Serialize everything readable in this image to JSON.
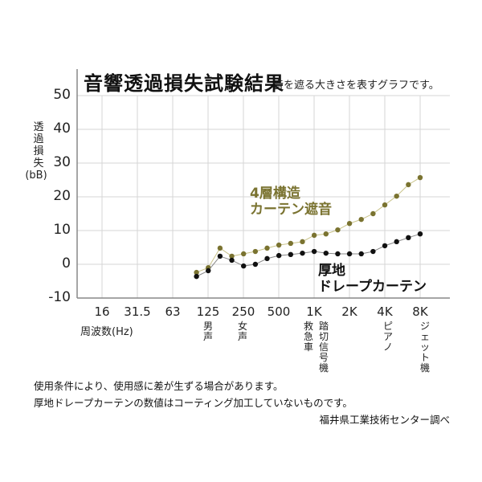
{
  "header": {
    "title": "音響透過損失試験結果",
    "subtitle": "音を遮る大きさを表すグラフです。"
  },
  "axes": {
    "ylabel_lines": [
      "透",
      "過",
      "損",
      "失"
    ],
    "ylabel_unit": "(bB)",
    "yticks": [
      "50",
      "40",
      "30",
      "20",
      "10",
      "0",
      "-10"
    ],
    "xticks": [
      "16",
      "31.5",
      "63",
      "125",
      "250",
      "500",
      "1K",
      "2K",
      "4K",
      "8K"
    ],
    "xlabel": "周波数(Hz)"
  },
  "annotations": {
    "male_voice": "男声",
    "female_voice": "女声",
    "ambulance": "救急車",
    "railroad_crossing": "踏切信号機",
    "piano": "ピアノ",
    "jet": "ジェット機"
  },
  "series_labels": {
    "four_layer_line1": "4層構造",
    "four_layer_line2": "カーテン遮音",
    "drape_line1": "厚地",
    "drape_line2": "ドレープカーテン"
  },
  "notes": {
    "line1": "使用条件により、使用感に差が生ずる場合があります。",
    "line2": "厚地ドレープカーテンの数値はコーティング加工していないものです。",
    "source": "福井県工業技術センター調べ"
  },
  "colors": {
    "four_layer": "#7a7330",
    "drape": "#111111",
    "grid": "#d6d6d6",
    "axis": "#888888"
  },
  "chart_data": {
    "type": "line",
    "title": "音響透過損失試験結果",
    "subtitle": "音を遮る大きさを表すグラフです。",
    "xlabel": "周波数(Hz)",
    "ylabel": "透過損失(bB)",
    "ylim": [
      -10,
      50
    ],
    "yticks": [
      -10,
      0,
      10,
      20,
      30,
      40,
      50
    ],
    "xtick_labels": [
      "16",
      "31.5",
      "63",
      "125",
      "250",
      "500",
      "1K",
      "2K",
      "4K",
      "8K"
    ],
    "grid": true,
    "x": [
      "100",
      "125",
      "160",
      "200",
      "250",
      "315",
      "400",
      "500",
      "630",
      "800",
      "1K",
      "1.25K",
      "1.6K",
      "2K",
      "2.5K",
      "3.15K",
      "4K",
      "5K",
      "6.3K",
      "8K"
    ],
    "series": [
      {
        "name": "4層構造カーテン遮音",
        "color": "#7a7330",
        "values": [
          -2.4,
          -1.0,
          4.8,
          2.4,
          3.1,
          3.8,
          4.8,
          5.7,
          6.2,
          6.7,
          8.6,
          9.0,
          10.2,
          12.1,
          13.3,
          15.0,
          17.6,
          20.2,
          23.6,
          25.7
        ]
      },
      {
        "name": "厚地ドレープカーテン",
        "color": "#111111",
        "values": [
          -3.6,
          -1.9,
          2.4,
          1.2,
          -0.5,
          0.0,
          1.7,
          2.6,
          2.9,
          3.3,
          3.8,
          3.3,
          3.1,
          3.1,
          3.1,
          3.8,
          5.5,
          6.7,
          7.9,
          9.0
        ]
      }
    ],
    "annotations": [
      {
        "x": "125",
        "text": "男声"
      },
      {
        "x": "250",
        "text": "女声"
      },
      {
        "x": "1K",
        "text": "救急車"
      },
      {
        "x": "1K",
        "text": "踏切信号機"
      },
      {
        "x": "4K",
        "text": "ピアノ"
      },
      {
        "x": "8K",
        "text": "ジェット機"
      }
    ]
  }
}
